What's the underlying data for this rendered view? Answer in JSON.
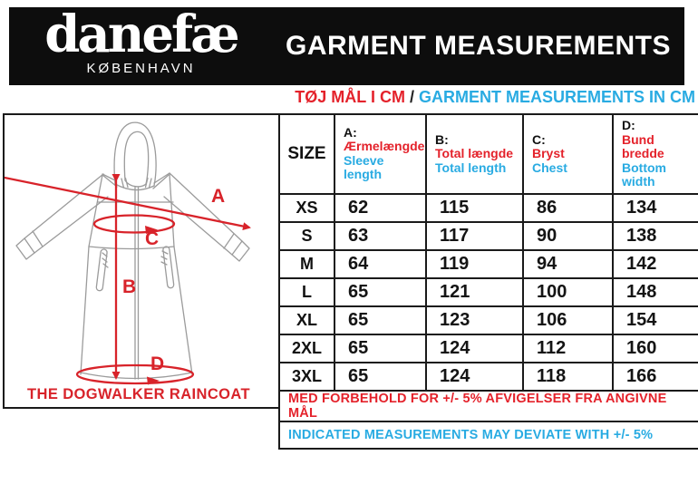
{
  "brand": {
    "logo_text": "danefæ",
    "logo_city": "KØBENHAVN"
  },
  "header": {
    "title": "GARMENT MEASUREMENTS"
  },
  "subtitle": {
    "da": "TØJ MÅL I CM",
    "separator": "/",
    "en": "GARMENT MEASUREMENTS IN CM"
  },
  "diagram": {
    "caption": "THE DOGWALKER RAINCOAT",
    "labels": [
      "A",
      "B",
      "C",
      "D"
    ]
  },
  "table": {
    "size_header": "SIZE",
    "columns": [
      {
        "key": "A:",
        "da": "Ærmelængde",
        "en": "Sleeve length"
      },
      {
        "key": "B:",
        "da": "Total længde",
        "en": "Total length"
      },
      {
        "key": "C:",
        "da": "Bryst",
        "en": "Chest"
      },
      {
        "key": "D:",
        "da": "Bund bredde",
        "en": "Bottom width"
      }
    ],
    "rows": [
      {
        "size": "XS",
        "values": [
          62,
          115,
          86,
          134
        ]
      },
      {
        "size": "S",
        "values": [
          63,
          117,
          90,
          138
        ]
      },
      {
        "size": "M",
        "values": [
          64,
          119,
          94,
          142
        ]
      },
      {
        "size": "L",
        "values": [
          65,
          121,
          100,
          148
        ]
      },
      {
        "size": "XL",
        "values": [
          65,
          123,
          106,
          154
        ]
      },
      {
        "size": "2XL",
        "values": [
          65,
          124,
          112,
          160
        ]
      },
      {
        "size": "3XL",
        "values": [
          65,
          124,
          118,
          166
        ]
      }
    ]
  },
  "notes": {
    "da": "MED FORBEHOLD FOR +/- 5% AFVIGELSER FRA ANGIVNE MÅL",
    "en": "INDICATED MEASUREMENTS MAY DEVIATE WITH +/- 5%"
  },
  "colors": {
    "red": "#e4222b",
    "blue": "#29abe2",
    "banner": "#0d0d0d"
  }
}
